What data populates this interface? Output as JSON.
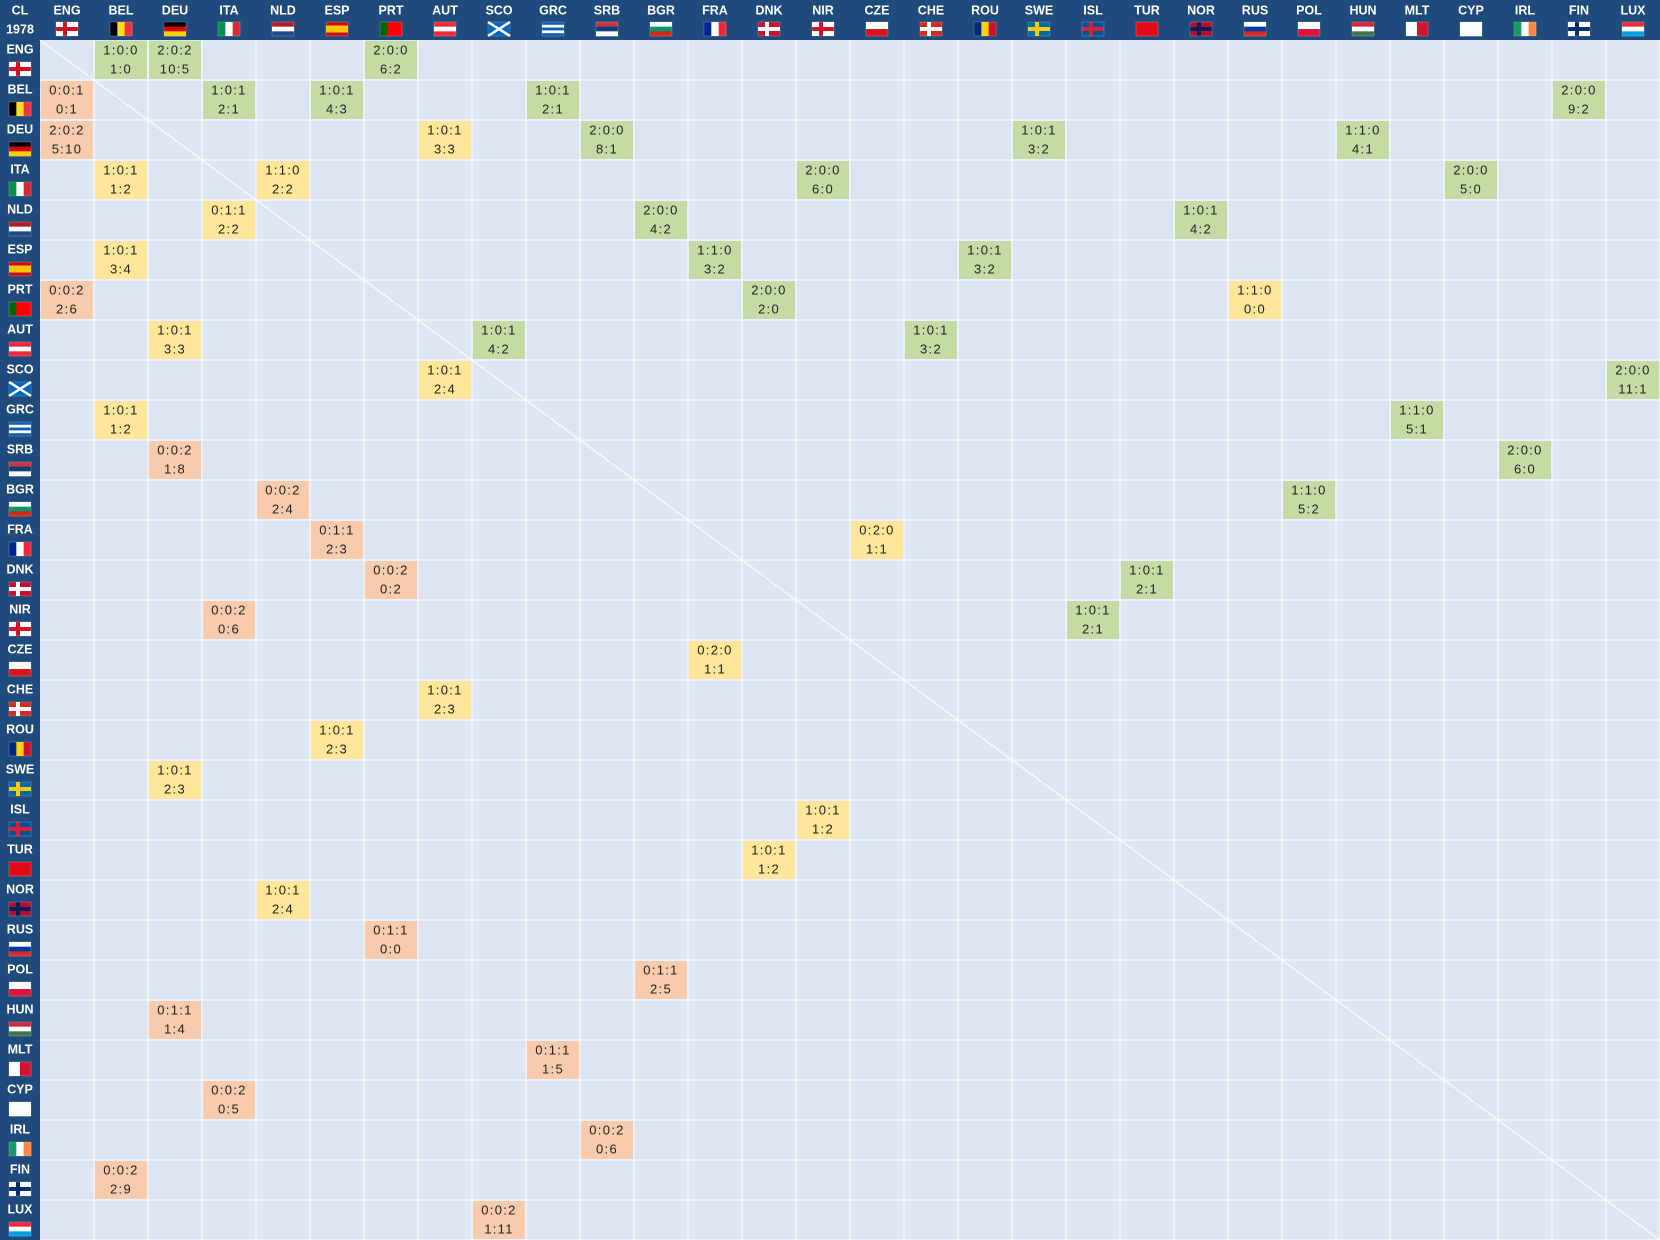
{
  "header": {
    "corner": "CL",
    "season": "1978"
  },
  "teams": [
    "ENG",
    "BEL",
    "DEU",
    "ITA",
    "NLD",
    "ESP",
    "PRT",
    "AUT",
    "SCO",
    "GRC",
    "SRB",
    "BGR",
    "FRA",
    "DNK",
    "NIR",
    "CZE",
    "CHE",
    "ROU",
    "SWE",
    "ISL",
    "TUR",
    "NOR",
    "RUS",
    "POL",
    "HUN",
    "MLT",
    "CYP",
    "IRL",
    "FIN",
    "LUX"
  ],
  "result_colors": {
    "win": "#c4dca4",
    "mixed": "#ffe699",
    "loss": "#f8cbad"
  },
  "results": [
    [
      {
        "opponent": "BEL",
        "record": "1:0:0",
        "score": "1:0",
        "result": "win"
      },
      {
        "opponent": "DEU",
        "record": "2:0:2",
        "score": "10:5",
        "result": "win"
      },
      {
        "opponent": "PRT",
        "record": "2:0:0",
        "score": "6:2",
        "result": "win"
      }
    ],
    [
      {
        "opponent": "ENG",
        "record": "0:0:1",
        "score": "0:1",
        "result": "loss"
      },
      {
        "opponent": "ITA",
        "record": "1:0:1",
        "score": "2:1",
        "result": "win"
      },
      {
        "opponent": "ESP",
        "record": "1:0:1",
        "score": "4:3",
        "result": "win"
      },
      {
        "opponent": "GRC",
        "record": "1:0:1",
        "score": "2:1",
        "result": "win"
      },
      {
        "opponent": "FIN",
        "record": "2:0:0",
        "score": "9:2",
        "result": "win"
      }
    ],
    [
      {
        "opponent": "ENG",
        "record": "2:0:2",
        "score": "5:10",
        "result": "loss"
      },
      {
        "opponent": "AUT",
        "record": "1:0:1",
        "score": "3:3",
        "result": "mixed"
      },
      {
        "opponent": "SRB",
        "record": "2:0:0",
        "score": "8:1",
        "result": "win"
      },
      {
        "opponent": "SWE",
        "record": "1:0:1",
        "score": "3:2",
        "result": "win"
      },
      {
        "opponent": "HUN",
        "record": "1:1:0",
        "score": "4:1",
        "result": "win"
      }
    ],
    [
      {
        "opponent": "BEL",
        "record": "1:0:1",
        "score": "1:2",
        "result": "mixed"
      },
      {
        "opponent": "NLD",
        "record": "1:1:0",
        "score": "2:2",
        "result": "mixed"
      },
      {
        "opponent": "NIR",
        "record": "2:0:0",
        "score": "6:0",
        "result": "win"
      },
      {
        "opponent": "CYP",
        "record": "2:0:0",
        "score": "5:0",
        "result": "win"
      }
    ],
    [
      {
        "opponent": "ITA",
        "record": "0:1:1",
        "score": "2:2",
        "result": "mixed"
      },
      {
        "opponent": "BGR",
        "record": "2:0:0",
        "score": "4:2",
        "result": "win"
      },
      {
        "opponent": "NOR",
        "record": "1:0:1",
        "score": "4:2",
        "result": "win"
      }
    ],
    [
      {
        "opponent": "BEL",
        "record": "1:0:1",
        "score": "3:4",
        "result": "mixed"
      },
      {
        "opponent": "FRA",
        "record": "1:1:0",
        "score": "3:2",
        "result": "win"
      },
      {
        "opponent": "ROU",
        "record": "1:0:1",
        "score": "3:2",
        "result": "win"
      }
    ],
    [
      {
        "opponent": "ENG",
        "record": "0:0:2",
        "score": "2:6",
        "result": "loss"
      },
      {
        "opponent": "DNK",
        "record": "2:0:0",
        "score": "2:0",
        "result": "win"
      },
      {
        "opponent": "RUS",
        "record": "1:1:0",
        "score": "0:0",
        "result": "mixed"
      }
    ],
    [
      {
        "opponent": "DEU",
        "record": "1:0:1",
        "score": "3:3",
        "result": "mixed"
      },
      {
        "opponent": "SCO",
        "record": "1:0:1",
        "score": "4:2",
        "result": "win"
      },
      {
        "opponent": "CHE",
        "record": "1:0:1",
        "score": "3:2",
        "result": "win"
      }
    ],
    [
      {
        "opponent": "AUT",
        "record": "1:0:1",
        "score": "2:4",
        "result": "mixed"
      },
      {
        "opponent": "LUX",
        "record": "2:0:0",
        "score": "11:1",
        "result": "win"
      }
    ],
    [
      {
        "opponent": "BEL",
        "record": "1:0:1",
        "score": "1:2",
        "result": "mixed"
      },
      {
        "opponent": "MLT",
        "record": "1:1:0",
        "score": "5:1",
        "result": "win"
      }
    ],
    [
      {
        "opponent": "DEU",
        "record": "0:0:2",
        "score": "1:8",
        "result": "loss"
      },
      {
        "opponent": "IRL",
        "record": "2:0:0",
        "score": "6:0",
        "result": "win"
      }
    ],
    [
      {
        "opponent": "NLD",
        "record": "0:0:2",
        "score": "2:4",
        "result": "loss"
      },
      {
        "opponent": "POL",
        "record": "1:1:0",
        "score": "5:2",
        "result": "win"
      }
    ],
    [
      {
        "opponent": "ESP",
        "record": "0:1:1",
        "score": "2:3",
        "result": "loss"
      },
      {
        "opponent": "CZE",
        "record": "0:2:0",
        "score": "1:1",
        "result": "mixed"
      }
    ],
    [
      {
        "opponent": "PRT",
        "record": "0:0:2",
        "score": "0:2",
        "result": "loss"
      },
      {
        "opponent": "TUR",
        "record": "1:0:1",
        "score": "2:1",
        "result": "win"
      }
    ],
    [
      {
        "opponent": "ITA",
        "record": "0:0:2",
        "score": "0:6",
        "result": "loss"
      },
      {
        "opponent": "ISL",
        "record": "1:0:1",
        "score": "2:1",
        "result": "win"
      }
    ],
    [
      {
        "opponent": "FRA",
        "record": "0:2:0",
        "score": "1:1",
        "result": "mixed"
      }
    ],
    [
      {
        "opponent": "AUT",
        "record": "1:0:1",
        "score": "2:3",
        "result": "mixed"
      }
    ],
    [
      {
        "opponent": "ESP",
        "record": "1:0:1",
        "score": "2:3",
        "result": "mixed"
      }
    ],
    [
      {
        "opponent": "DEU",
        "record": "1:0:1",
        "score": "2:3",
        "result": "mixed"
      }
    ],
    [
      {
        "opponent": "NIR",
        "record": "1:0:1",
        "score": "1:2",
        "result": "mixed"
      }
    ],
    [
      {
        "opponent": "DNK",
        "record": "1:0:1",
        "score": "1:2",
        "result": "mixed"
      }
    ],
    [
      {
        "opponent": "NLD",
        "record": "1:0:1",
        "score": "2:4",
        "result": "mixed"
      }
    ],
    [
      {
        "opponent": "PRT",
        "record": "0:1:1",
        "score": "0:0",
        "result": "loss"
      }
    ],
    [
      {
        "opponent": "BGR",
        "record": "0:1:1",
        "score": "2:5",
        "result": "loss"
      }
    ],
    [
      {
        "opponent": "DEU",
        "record": "0:1:1",
        "score": "1:4",
        "result": "loss"
      }
    ],
    [
      {
        "opponent": "GRC",
        "record": "0:1:1",
        "score": "1:5",
        "result": "loss"
      }
    ],
    [
      {
        "opponent": "ITA",
        "record": "0:0:2",
        "score": "0:5",
        "result": "loss"
      }
    ],
    [
      {
        "opponent": "SRB",
        "record": "0:0:2",
        "score": "0:6",
        "result": "loss"
      }
    ],
    [
      {
        "opponent": "BEL",
        "record": "0:0:2",
        "score": "2:9",
        "result": "loss"
      }
    ],
    [
      {
        "opponent": "SCO",
        "record": "0:0:2",
        "score": "1:11",
        "result": "loss"
      }
    ]
  ]
}
